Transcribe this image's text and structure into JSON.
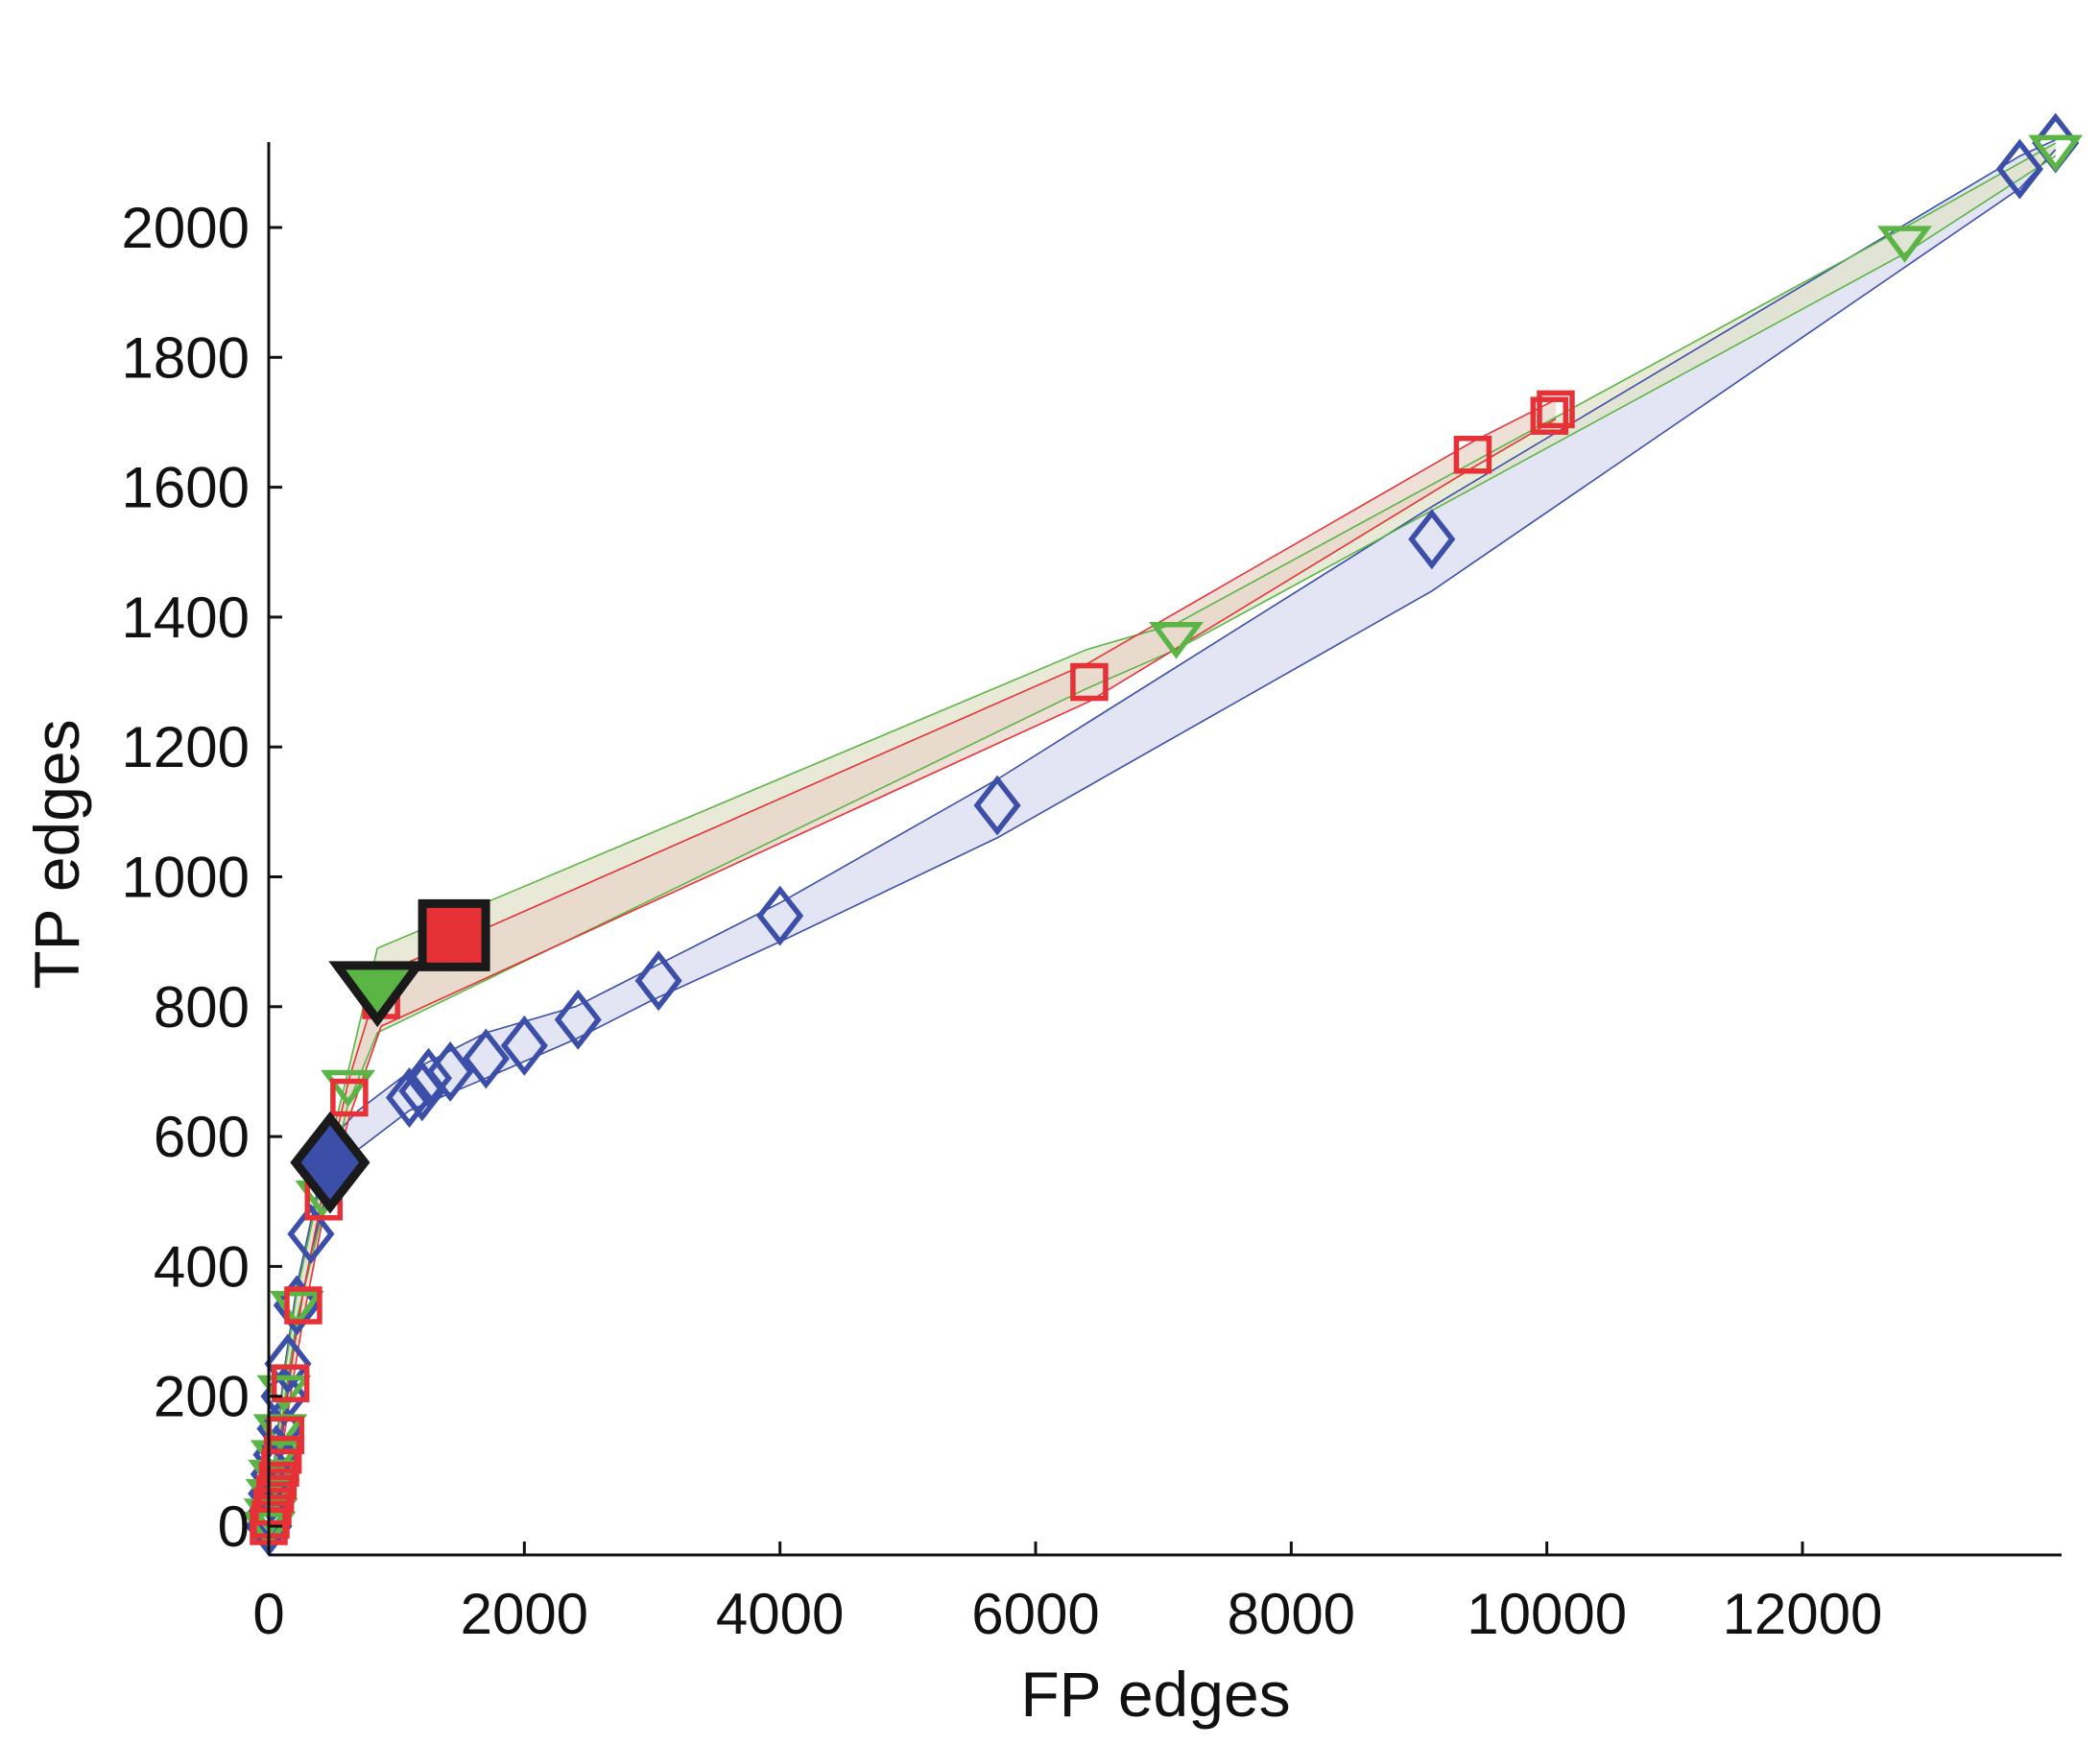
{
  "chart_data": {
    "type": "scatter",
    "title": "",
    "xlabel": "FP edges",
    "ylabel": "TP edges",
    "xlim": [
      0,
      14000
    ],
    "ylim": [
      -50,
      2150
    ],
    "xticks": [
      0,
      2000,
      4000,
      6000,
      8000,
      10000,
      12000
    ],
    "xtick_labels": [
      "0",
      "2000",
      "4000",
      "6000",
      "8000",
      "10000",
      "12000"
    ],
    "yticks": [
      0,
      200,
      400,
      600,
      800,
      1000,
      1200,
      1400,
      1600,
      1800,
      2000
    ],
    "ytick_labels": [
      "0",
      "200",
      "400",
      "600",
      "800",
      "1000",
      "1200",
      "1400",
      "1600",
      "1800",
      "2000"
    ],
    "grid": false,
    "legend": "none",
    "series": [
      {
        "marker": "diamond",
        "color": "#3b4ea8",
        "band_color": "#d9dcf1",
        "points": [
          [
            0,
            0
          ],
          [
            10,
            20
          ],
          [
            20,
            50
          ],
          [
            40,
            80
          ],
          [
            60,
            110
          ],
          [
            90,
            150
          ],
          [
            120,
            200
          ],
          [
            150,
            250
          ],
          [
            220,
            340
          ],
          [
            330,
            450
          ],
          [
            440,
            550
          ],
          [
            1100,
            660
          ],
          [
            1200,
            670
          ],
          [
            1250,
            690
          ],
          [
            1420,
            700
          ],
          [
            1700,
            720
          ],
          [
            2000,
            740
          ],
          [
            2420,
            780
          ],
          [
            3050,
            840
          ],
          [
            4000,
            940
          ],
          [
            5700,
            1110
          ],
          [
            9100,
            1520
          ],
          [
            13700,
            2090
          ],
          [
            13980,
            2130
          ]
        ],
        "band_upper": [
          [
            0,
            20
          ],
          [
            120,
            240
          ],
          [
            220,
            370
          ],
          [
            330,
            470
          ],
          [
            460,
            590
          ],
          [
            700,
            640
          ],
          [
            1100,
            700
          ],
          [
            1700,
            760
          ],
          [
            2400,
            800
          ],
          [
            3000,
            860
          ],
          [
            4000,
            960
          ],
          [
            5700,
            1150
          ],
          [
            9100,
            1570
          ],
          [
            13700,
            2110
          ],
          [
            13980,
            2135
          ]
        ],
        "band_lower": [
          [
            0,
            -20
          ],
          [
            120,
            160
          ],
          [
            220,
            310
          ],
          [
            330,
            420
          ],
          [
            460,
            520
          ],
          [
            700,
            580
          ],
          [
            1100,
            640
          ],
          [
            1700,
            690
          ],
          [
            2400,
            750
          ],
          [
            3000,
            810
          ],
          [
            4000,
            900
          ],
          [
            5700,
            1060
          ],
          [
            9100,
            1440
          ],
          [
            13700,
            2060
          ],
          [
            13980,
            2120
          ]
        ],
        "highlight": [
          480,
          560
        ]
      },
      {
        "marker": "triangle-down",
        "color": "#5ab544",
        "band_color": "#e0e2c8",
        "points": [
          [
            0,
            0
          ],
          [
            15,
            20
          ],
          [
            30,
            50
          ],
          [
            50,
            80
          ],
          [
            70,
            110
          ],
          [
            90,
            150
          ],
          [
            120,
            210
          ],
          [
            220,
            340
          ],
          [
            420,
            510
          ],
          [
            620,
            680
          ],
          [
            850,
            820
          ],
          [
            7100,
            1370
          ],
          [
            12800,
            1980
          ],
          [
            13980,
            2120
          ]
        ],
        "band_upper": [
          [
            0,
            10
          ],
          [
            120,
            230
          ],
          [
            220,
            360
          ],
          [
            420,
            540
          ],
          [
            620,
            700
          ],
          [
            850,
            890
          ],
          [
            6400,
            1350
          ],
          [
            7100,
            1390
          ],
          [
            12800,
            2000
          ],
          [
            13980,
            2130
          ]
        ],
        "band_lower": [
          [
            0,
            -10
          ],
          [
            120,
            190
          ],
          [
            220,
            320
          ],
          [
            420,
            480
          ],
          [
            620,
            650
          ],
          [
            850,
            760
          ],
          [
            6400,
            1290
          ],
          [
            7100,
            1350
          ],
          [
            12800,
            1960
          ],
          [
            13980,
            2110
          ]
        ],
        "highlight": [
          850,
          830
        ]
      },
      {
        "marker": "square",
        "color": "#e63136",
        "band_color": "#e8d4c9",
        "points": [
          [
            0,
            0
          ],
          [
            15,
            10
          ],
          [
            30,
            30
          ],
          [
            50,
            50
          ],
          [
            70,
            70
          ],
          [
            90,
            90
          ],
          [
            110,
            110
          ],
          [
            130,
            140
          ],
          [
            170,
            220
          ],
          [
            270,
            340
          ],
          [
            430,
            500
          ],
          [
            630,
            660
          ],
          [
            880,
            810
          ],
          [
            6420,
            1300
          ],
          [
            9420,
            1650
          ],
          [
            10020,
            1710
          ],
          [
            10070,
            1720
          ]
        ],
        "band_upper": [
          [
            0,
            10
          ],
          [
            170,
            240
          ],
          [
            270,
            360
          ],
          [
            430,
            520
          ],
          [
            630,
            690
          ],
          [
            880,
            850
          ],
          [
            6420,
            1330
          ],
          [
            9420,
            1670
          ],
          [
            10070,
            1735
          ]
        ],
        "band_lower": [
          [
            0,
            -10
          ],
          [
            170,
            200
          ],
          [
            270,
            320
          ],
          [
            430,
            480
          ],
          [
            630,
            630
          ],
          [
            880,
            770
          ],
          [
            6420,
            1270
          ],
          [
            9420,
            1630
          ],
          [
            10070,
            1705
          ]
        ],
        "highlight": [
          1450,
          910
        ]
      }
    ]
  }
}
